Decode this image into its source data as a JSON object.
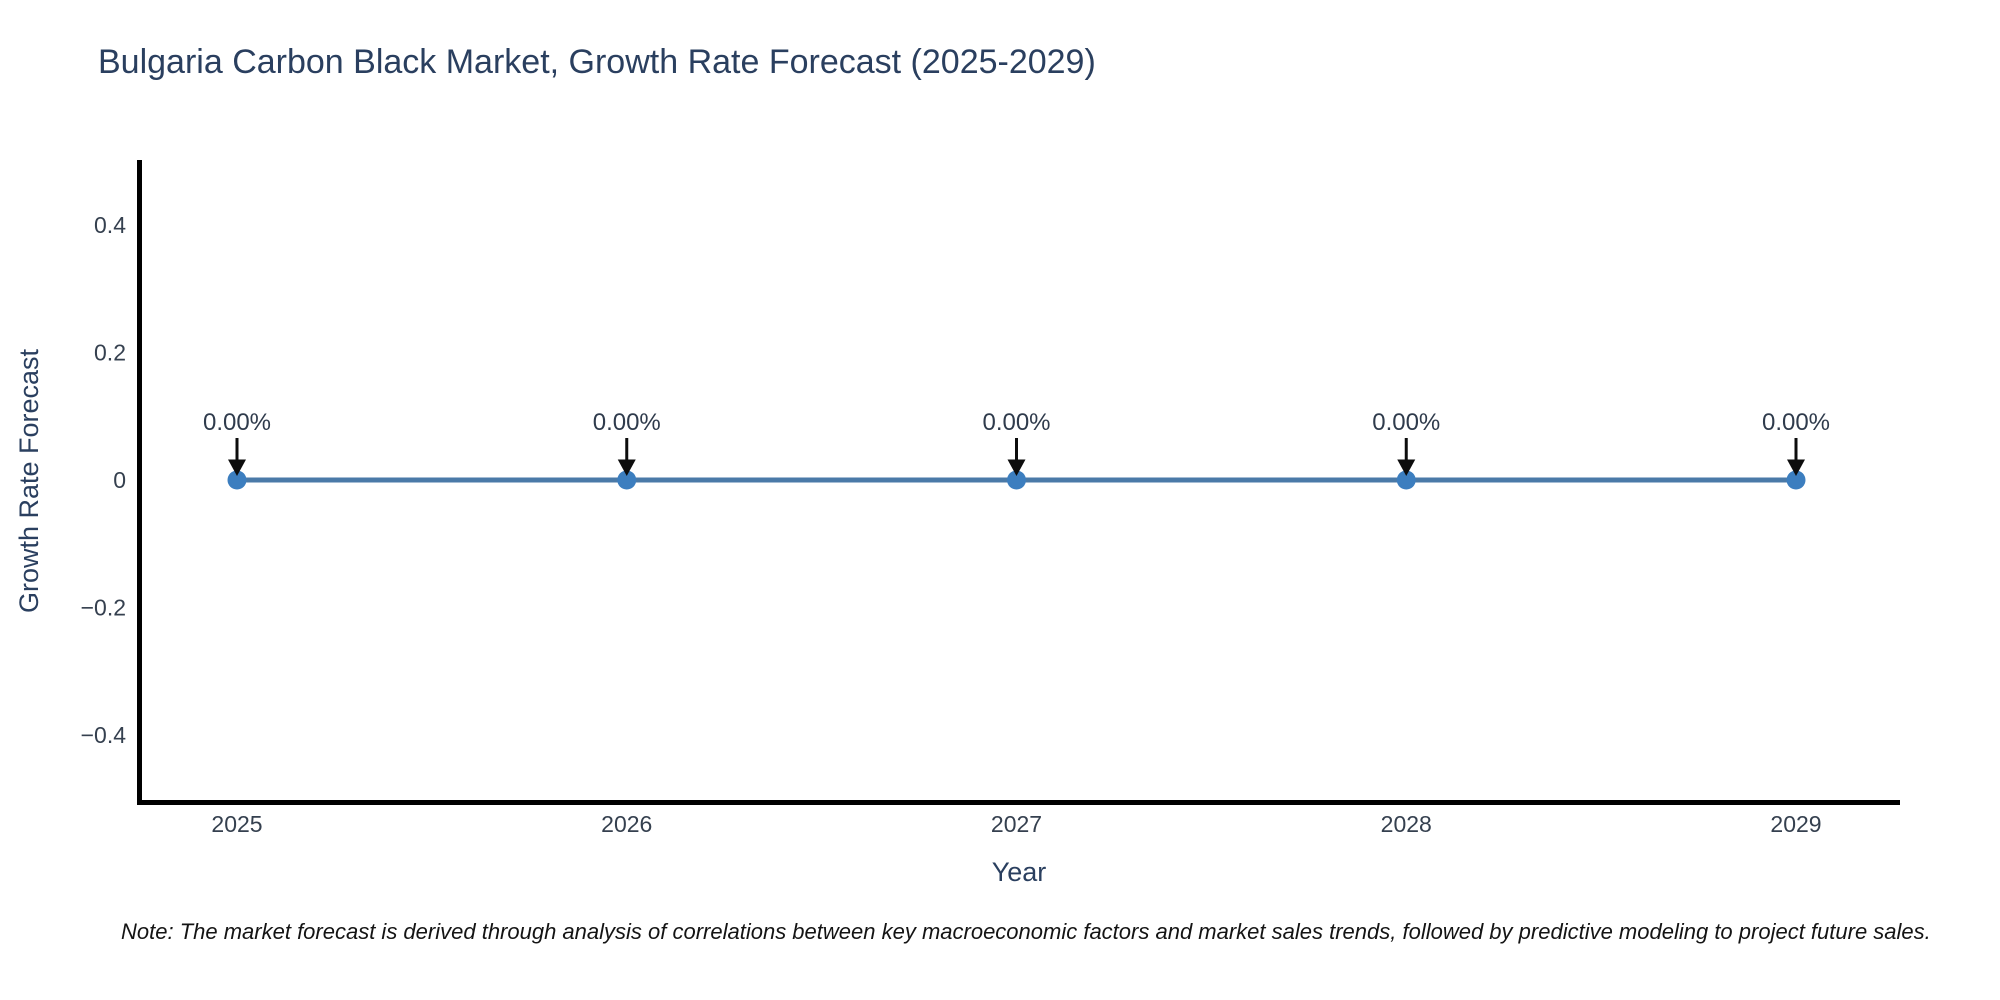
{
  "title": "Bulgaria Carbon Black Market, Growth Rate Forecast (2025-2029)",
  "note": "Note: The market forecast is derived through analysis of correlations between key macroeconomic factors and market sales trends, followed by predictive modeling to project future sales.",
  "colors": {
    "background": "#ffffff",
    "title_text": "#2a3f5f",
    "tick_text": "#35404f",
    "annotation_text": "#2f3b4c",
    "note_text": "#141414",
    "axis_line": "#000000",
    "series_line": "#4a7aa8",
    "marker_fill": "#3c7ebf",
    "arrow": "#0d0d0d"
  },
  "chart_data": {
    "type": "line",
    "title": "Bulgaria Carbon Black Market, Growth Rate Forecast (2025-2029)",
    "xlabel": "Year",
    "ylabel": "Growth Rate Forecast",
    "x": [
      2025,
      2026,
      2027,
      2028,
      2029
    ],
    "series": [
      {
        "name": "Growth Rate Forecast",
        "values": [
          0,
          0,
          0,
          0,
          0
        ]
      }
    ],
    "point_labels": [
      "0.00%",
      "0.00%",
      "0.00%",
      "0.00%",
      "0.00%"
    ],
    "x_tick_labels": [
      "2025",
      "2026",
      "2027",
      "2028",
      "2029"
    ],
    "y_tick_labels": [
      "0.4",
      "0.2",
      "0",
      "−0.2",
      "−0.4"
    ],
    "y_tick_values": [
      0.4,
      0.2,
      0,
      -0.2,
      -0.4
    ],
    "ylim": [
      -0.51,
      0.5
    ],
    "grid": false,
    "legend_position": "none",
    "annotation_style": "down-arrow"
  }
}
